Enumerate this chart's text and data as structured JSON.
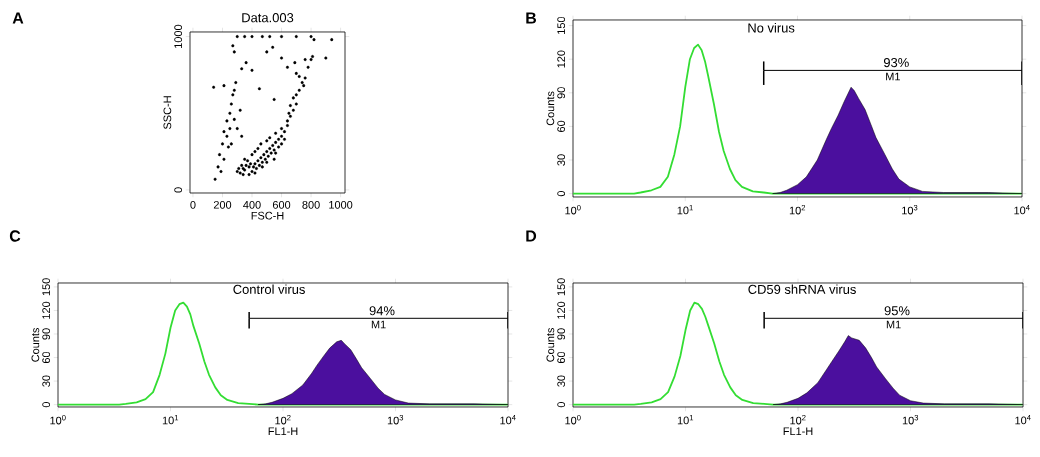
{
  "chart_data": [
    {
      "type": "scatter",
      "title": "Data.003",
      "xlabel": "FSC-H",
      "ylabel": "SSC-H",
      "marker": "circle",
      "color": "#000000",
      "xlim": [
        -20,
        1030
      ],
      "ylim": [
        -20,
        1030
      ],
      "xticks": [
        0,
        200,
        400,
        600,
        800,
        1000
      ],
      "yticks": [
        0,
        1000
      ],
      "annotations": [
        "A"
      ],
      "x": [
        320,
        350,
        380,
        400,
        420,
        440,
        460,
        480,
        500,
        520,
        540,
        560,
        580,
        600,
        450,
        470,
        490,
        510,
        530,
        550,
        430,
        410,
        390,
        370,
        360,
        340,
        330,
        350,
        400,
        420,
        440,
        460,
        500,
        520,
        560,
        600,
        620,
        640,
        580,
        600,
        620,
        550,
        500,
        470,
        420,
        380,
        340,
        300,
        310,
        560,
        640,
        660,
        680,
        700,
        660,
        700,
        720,
        740,
        680,
        650,
        750,
        720,
        760,
        700,
        780,
        800,
        810,
        760,
        690,
        940,
        900,
        820,
        150,
        170,
        180,
        200,
        210,
        230,
        250,
        260,
        270,
        280,
        290,
        230,
        250,
        210,
        190,
        240,
        300,
        260,
        280,
        320,
        330,
        140,
        210,
        270,
        280,
        300,
        350,
        400,
        470,
        520,
        600,
        700,
        800,
        540,
        330,
        360,
        450,
        550,
        500,
        600,
        640,
        400
      ],
      "values": [
        110,
        130,
        150,
        120,
        170,
        190,
        210,
        230,
        250,
        270,
        290,
        310,
        330,
        350,
        160,
        180,
        200,
        220,
        240,
        260,
        140,
        150,
        170,
        190,
        160,
        140,
        160,
        200,
        230,
        250,
        270,
        300,
        320,
        340,
        370,
        400,
        380,
        420,
        280,
        300,
        330,
        200,
        180,
        150,
        110,
        100,
        100,
        120,
        140,
        240,
        450,
        480,
        520,
        560,
        550,
        620,
        650,
        700,
        600,
        500,
        680,
        740,
        730,
        760,
        800,
        850,
        870,
        850,
        830,
        980,
        860,
        980,
        70,
        150,
        230,
        300,
        380,
        450,
        500,
        560,
        620,
        650,
        700,
        350,
        400,
        200,
        120,
        280,
        400,
        300,
        460,
        520,
        350,
        670,
        680,
        940,
        900,
        1000,
        1000,
        1000,
        1000,
        1000,
        1000,
        1000,
        1000,
        930,
        790,
        830,
        660,
        590,
        900,
        860,
        800,
        780
      ]
    },
    {
      "type": "line",
      "title": "No virus",
      "ylabel": "Counts",
      "log": "x",
      "xlim": [
        1,
        10000
      ],
      "ylim": [
        -3,
        155
      ],
      "xticks": [
        {
          "value": 1,
          "label": "10$^{0}$"
        },
        {
          "value": 10,
          "label": "10$^{1}$"
        },
        {
          "value": 100,
          "label": "10$^{2}$"
        },
        {
          "value": 1000,
          "label": "10$^{3}$"
        },
        {
          "value": 10000,
          "label": "10$^{4}$"
        }
      ],
      "yticks": [
        0,
        30,
        60,
        90,
        120,
        150
      ],
      "annotations": [
        "B",
        "93%"
      ],
      "series": [
        {
          "type": "line",
          "name": "M1",
          "color": "#000000",
          "x": [
            50,
            10000
          ],
          "values": [
            110,
            110
          ],
          "errors": [
            [
              97,
              118
            ],
            [
              97,
              118
            ]
          ]
        },
        {
          "type": "line",
          "color": "#33dd33",
          "x": [
            1,
            3.5,
            4,
            5,
            6,
            7,
            8,
            9,
            10,
            11,
            12,
            13,
            14,
            15,
            16,
            18,
            20,
            22,
            25,
            28,
            32,
            40,
            50,
            60,
            9900
          ],
          "values": [
            0,
            0,
            1,
            3,
            6,
            15,
            35,
            60,
            95,
            120,
            130,
            133,
            128,
            118,
            105,
            80,
            55,
            38,
            22,
            12,
            6,
            2,
            1,
            0,
            0
          ]
        },
        {
          "type": "area",
          "color": "#4b0f9e",
          "x": [
            60,
            70,
            80,
            100,
            120,
            150,
            180,
            200,
            230,
            260,
            300,
            320,
            350,
            400,
            450,
            500,
            600,
            700,
            800,
            1000,
            1300,
            2000,
            5000,
            10000
          ],
          "values": [
            0,
            1,
            3,
            8,
            15,
            30,
            48,
            58,
            70,
            82,
            95,
            92,
            85,
            75,
            62,
            50,
            35,
            22,
            13,
            6,
            2,
            1,
            1,
            0
          ]
        }
      ]
    },
    {
      "type": "line",
      "title": "Control virus",
      "xlabel": "FL1-H",
      "ylabel": "Counts",
      "log": "x",
      "xlim": [
        1,
        10000
      ],
      "ylim": [
        -3,
        155
      ],
      "xticks": [
        {
          "value": 1,
          "label": "10$^{0}$"
        },
        {
          "value": 10,
          "label": "10$^{1}$"
        },
        {
          "value": 100,
          "label": "10$^{2}$"
        },
        {
          "value": 1000,
          "label": "10$^{3}$"
        },
        {
          "value": 10000,
          "label": "10$^{4}$"
        }
      ],
      "yticks": [
        0,
        30,
        60,
        90,
        120,
        150
      ],
      "annotations": [
        "C",
        "94%"
      ],
      "series": [
        {
          "type": "line",
          "name": "M1",
          "color": "#000000",
          "x": [
            50,
            10000
          ],
          "values": [
            110,
            110
          ],
          "errors": [
            [
              97,
              118
            ],
            [
              97,
              118
            ]
          ]
        },
        {
          "type": "line",
          "color": "#33dd33",
          "x": [
            1,
            3.5,
            4,
            5,
            6,
            7,
            8,
            9,
            10,
            11,
            12,
            13,
            14,
            15,
            16,
            18,
            20,
            22,
            25,
            28,
            32,
            40,
            50,
            60,
            9900
          ],
          "values": [
            0,
            0,
            1,
            3,
            7,
            16,
            38,
            65,
            98,
            120,
            128,
            130,
            125,
            115,
            100,
            78,
            55,
            38,
            22,
            12,
            6,
            2,
            1,
            0,
            0
          ]
        },
        {
          "type": "area",
          "color": "#4b0f9e",
          "x": [
            60,
            70,
            80,
            100,
            120,
            150,
            180,
            200,
            230,
            260,
            300,
            330,
            350,
            400,
            450,
            500,
            600,
            700,
            800,
            1000,
            1300,
            2000,
            5000,
            10000
          ],
          "values": [
            0,
            1,
            3,
            8,
            14,
            25,
            40,
            50,
            62,
            72,
            80,
            82,
            78,
            70,
            58,
            47,
            33,
            21,
            13,
            6,
            2,
            1,
            1,
            0
          ]
        }
      ]
    },
    {
      "type": "line",
      "title": "CD59 shRNA virus",
      "xlabel": "FL1-H",
      "ylabel": "Counts",
      "log": "x",
      "xlim": [
        1,
        10000
      ],
      "ylim": [
        -3,
        155
      ],
      "xticks": [
        {
          "value": 1,
          "label": "10$^{0}$"
        },
        {
          "value": 10,
          "label": "10$^{1}$"
        },
        {
          "value": 100,
          "label": "10$^{2}$"
        },
        {
          "value": 1000,
          "label": "10$^{3}$"
        },
        {
          "value": 10000,
          "label": "10$^{4}$"
        }
      ],
      "yticks": [
        0,
        30,
        60,
        90,
        120,
        150
      ],
      "annotations": [
        "D",
        "95%"
      ],
      "series": [
        {
          "type": "line",
          "name": "M1",
          "color": "#000000",
          "x": [
            50,
            10000
          ],
          "values": [
            110,
            110
          ],
          "errors": [
            [
              97,
              118
            ],
            [
              97,
              118
            ]
          ]
        },
        {
          "type": "line",
          "color": "#33dd33",
          "x": [
            1,
            3.5,
            4,
            5,
            6,
            7,
            8,
            9,
            10,
            11,
            12,
            13,
            14,
            15,
            16,
            18,
            20,
            22,
            25,
            28,
            32,
            40,
            50,
            60,
            9900
          ],
          "values": [
            0,
            0,
            1,
            3,
            7,
            16,
            36,
            62,
            95,
            120,
            130,
            128,
            122,
            112,
            100,
            78,
            55,
            38,
            22,
            12,
            6,
            2,
            1,
            0,
            0
          ]
        },
        {
          "type": "area",
          "color": "#4b0f9e",
          "x": [
            60,
            70,
            80,
            100,
            120,
            150,
            180,
            200,
            230,
            260,
            280,
            300,
            350,
            400,
            450,
            500,
            600,
            700,
            800,
            1000,
            1300,
            2000,
            5000,
            10000
          ],
          "values": [
            0,
            1,
            3,
            8,
            15,
            28,
            45,
            55,
            68,
            80,
            88,
            85,
            82,
            72,
            60,
            48,
            33,
            21,
            12,
            5,
            2,
            1,
            1,
            0
          ]
        }
      ]
    }
  ]
}
